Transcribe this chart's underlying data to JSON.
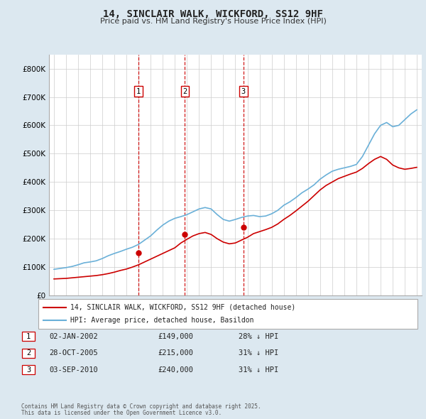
{
  "title": "14, SINCLAIR WALK, WICKFORD, SS12 9HF",
  "subtitle": "Price paid vs. HM Land Registry's House Price Index (HPI)",
  "background_color": "#dce8f0",
  "plot_bg_color": "#ffffff",
  "legend_line1": "14, SINCLAIR WALK, WICKFORD, SS12 9HF (detached house)",
  "legend_line2": "HPI: Average price, detached house, Basildon",
  "footer_line1": "Contains HM Land Registry data © Crown copyright and database right 2025.",
  "footer_line2": "This data is licensed under the Open Government Licence v3.0.",
  "transactions": [
    {
      "num": 1,
      "date": "02-JAN-2002",
      "price": 149000,
      "hpi_note": "28% ↓ HPI",
      "x_year": 2002.0
    },
    {
      "num": 2,
      "date": "28-OCT-2005",
      "price": 215000,
      "hpi_note": "31% ↓ HPI",
      "x_year": 2005.83
    },
    {
      "num": 3,
      "date": "03-SEP-2010",
      "price": 240000,
      "hpi_note": "31% ↓ HPI",
      "x_year": 2010.67
    }
  ],
  "hpi_data": {
    "years": [
      1995.0,
      1995.5,
      1996.0,
      1996.5,
      1997.0,
      1997.5,
      1998.0,
      1998.5,
      1999.0,
      1999.5,
      2000.0,
      2000.5,
      2001.0,
      2001.5,
      2002.0,
      2002.5,
      2003.0,
      2003.5,
      2004.0,
      2004.5,
      2005.0,
      2005.5,
      2006.0,
      2006.5,
      2007.0,
      2007.5,
      2008.0,
      2008.5,
      2009.0,
      2009.5,
      2010.0,
      2010.5,
      2011.0,
      2011.5,
      2012.0,
      2012.5,
      2013.0,
      2013.5,
      2014.0,
      2014.5,
      2015.0,
      2015.5,
      2016.0,
      2016.5,
      2017.0,
      2017.5,
      2018.0,
      2018.5,
      2019.0,
      2019.5,
      2020.0,
      2020.5,
      2021.0,
      2021.5,
      2022.0,
      2022.5,
      2023.0,
      2023.5,
      2024.0,
      2024.5,
      2025.0
    ],
    "values": [
      92000,
      95000,
      98000,
      102000,
      108000,
      115000,
      118000,
      122000,
      130000,
      140000,
      148000,
      155000,
      163000,
      170000,
      180000,
      195000,
      210000,
      230000,
      248000,
      262000,
      272000,
      278000,
      285000,
      295000,
      305000,
      310000,
      305000,
      285000,
      268000,
      262000,
      268000,
      275000,
      280000,
      282000,
      278000,
      280000,
      288000,
      300000,
      318000,
      330000,
      345000,
      362000,
      375000,
      390000,
      410000,
      425000,
      438000,
      445000,
      450000,
      455000,
      462000,
      490000,
      530000,
      570000,
      600000,
      610000,
      595000,
      600000,
      620000,
      640000,
      655000
    ]
  },
  "price_paid_data": {
    "years": [
      1995.0,
      1995.5,
      1996.0,
      1996.5,
      1997.0,
      1997.5,
      1998.0,
      1998.5,
      1999.0,
      1999.5,
      2000.0,
      2000.5,
      2001.0,
      2001.5,
      2002.0,
      2002.5,
      2003.0,
      2003.5,
      2004.0,
      2004.5,
      2005.0,
      2005.5,
      2006.0,
      2006.5,
      2007.0,
      2007.5,
      2008.0,
      2008.5,
      2009.0,
      2009.5,
      2010.0,
      2010.5,
      2011.0,
      2011.5,
      2012.0,
      2012.5,
      2013.0,
      2013.5,
      2014.0,
      2014.5,
      2015.0,
      2015.5,
      2016.0,
      2016.5,
      2017.0,
      2017.5,
      2018.0,
      2018.5,
      2019.0,
      2019.5,
      2020.0,
      2020.5,
      2021.0,
      2021.5,
      2022.0,
      2022.5,
      2023.0,
      2023.5,
      2024.0,
      2024.5,
      2025.0
    ],
    "values": [
      58000,
      59000,
      60000,
      62000,
      64000,
      66000,
      68000,
      70000,
      73000,
      77000,
      82000,
      88000,
      93000,
      100000,
      108000,
      118000,
      128000,
      138000,
      148000,
      158000,
      168000,
      185000,
      198000,
      210000,
      218000,
      222000,
      215000,
      200000,
      188000,
      182000,
      185000,
      195000,
      205000,
      218000,
      225000,
      232000,
      240000,
      252000,
      268000,
      282000,
      298000,
      315000,
      332000,
      352000,
      372000,
      388000,
      400000,
      412000,
      420000,
      428000,
      435000,
      448000,
      465000,
      480000,
      490000,
      480000,
      460000,
      450000,
      445000,
      448000,
      452000
    ]
  },
  "ylim": [
    0,
    850000
  ],
  "yticks": [
    0,
    100000,
    200000,
    300000,
    400000,
    500000,
    600000,
    700000,
    800000
  ],
  "ytick_labels": [
    "£0",
    "£100K",
    "£200K",
    "£300K",
    "£400K",
    "£500K",
    "£600K",
    "£700K",
    "£800K"
  ],
  "xlim": [
    1994.6,
    2025.4
  ],
  "xticks": [
    1995,
    1996,
    1997,
    1998,
    1999,
    2000,
    2001,
    2002,
    2003,
    2004,
    2005,
    2006,
    2007,
    2008,
    2009,
    2010,
    2011,
    2012,
    2013,
    2014,
    2015,
    2016,
    2017,
    2018,
    2019,
    2020,
    2021,
    2022,
    2023,
    2024,
    2025
  ],
  "hpi_color": "#6ab0d8",
  "price_color": "#cc0000",
  "vline_color": "#cc0000",
  "marker_box_color": "#cc0000",
  "grid_color": "#cccccc"
}
